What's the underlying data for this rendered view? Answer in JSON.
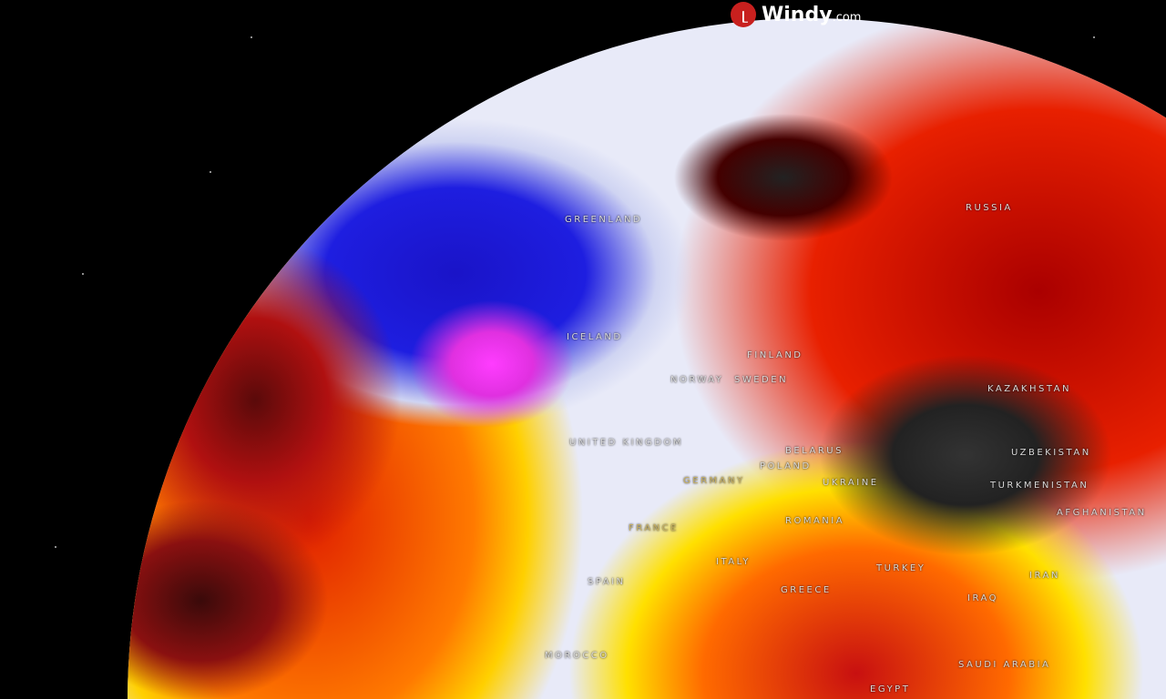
{
  "brand": {
    "name": "Windy",
    "suffix": ".com",
    "icon": "windy-logo-icon",
    "color": "#c8201e"
  },
  "labels": {
    "greenland": "GREENLAND",
    "russia": "RUSSIA",
    "iceland": "ICELAND",
    "finland": "FINLAND",
    "norway": "NORWAY",
    "sweden": "SWEDEN",
    "uk": "UNITED KINGDOM",
    "belarus": "BELARUS",
    "poland": "POLAND",
    "germany": "GERMANY",
    "ukraine": "UKRAINE",
    "kazakhstan": "KAZAKHSTAN",
    "uzbekistan": "UZBEKISTAN",
    "turkmenistan": "TURKMENISTAN",
    "afghanistan": "AFGHANISTAN",
    "france": "FRANCE",
    "romania": "ROMANIA",
    "spain": "SPAIN",
    "italy": "ITALY",
    "turkey": "TURKEY",
    "greece": "GREECE",
    "iran": "IRAN",
    "iraq": "IRAQ",
    "morocco": "MOROCCO",
    "saudi": "SAUDI ARABIA",
    "egypt": "EGYPT"
  },
  "legend_colors": {
    "cold": "#1e1ee0",
    "very_cold": "#ff3cff",
    "neutral": "#e8eaf8",
    "warm": "#ffd000",
    "hot": "#e02000",
    "very_hot": "#333333"
  }
}
